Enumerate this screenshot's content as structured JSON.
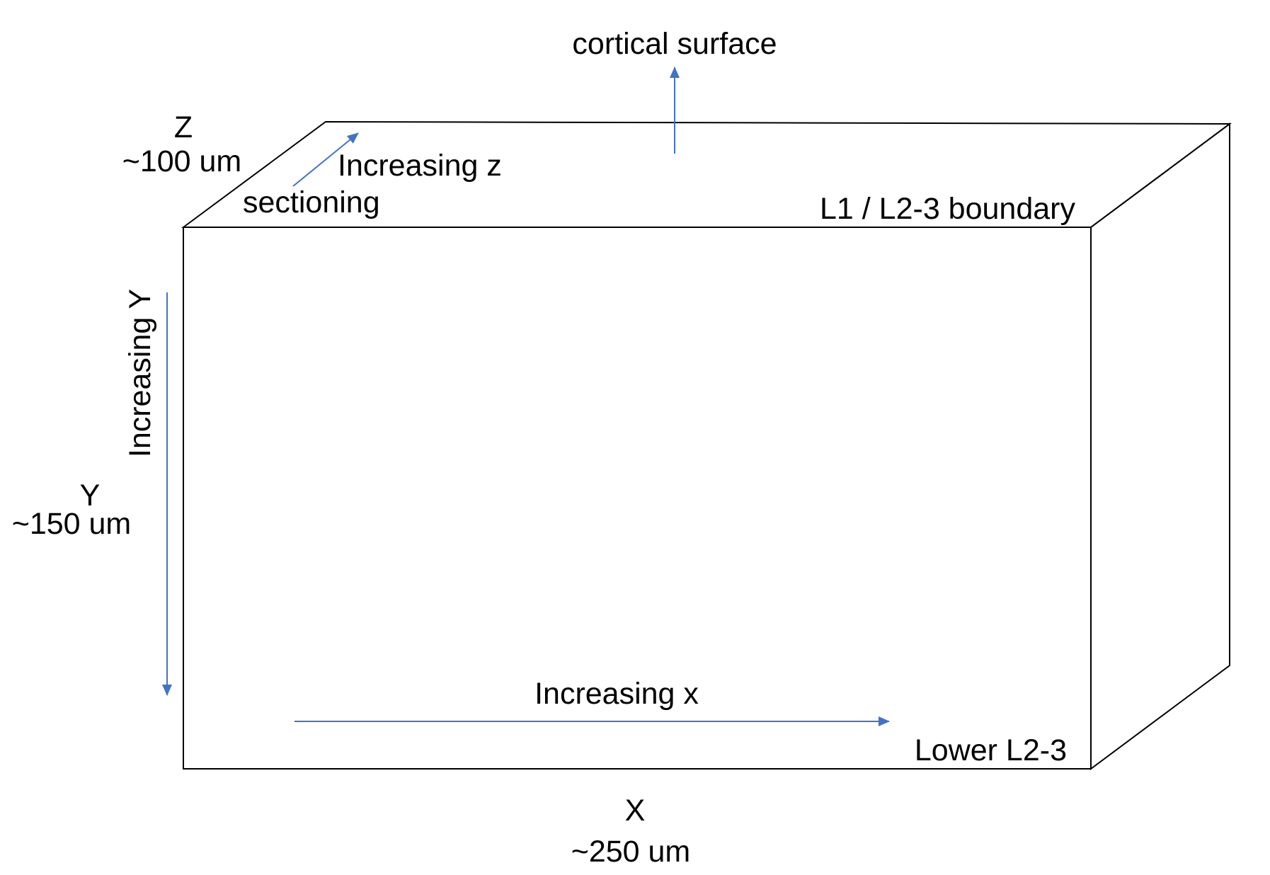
{
  "labels": {
    "cortical_surface": "cortical surface",
    "z_axis": "Z",
    "z_size": "~100 um",
    "increasing_z": "Increasing z",
    "sectioning": "sectioning",
    "l1_boundary": "L1 / L2-3 boundary",
    "increasing_y": "Increasing Y",
    "y_axis": "Y",
    "y_size": "~150 um",
    "increasing_x": "Increasing x",
    "lower_l23": "Lower L2-3",
    "x_axis": "X",
    "x_size": "~250 um"
  },
  "colors": {
    "arrow": "#4472c4",
    "outline": "#000000"
  }
}
